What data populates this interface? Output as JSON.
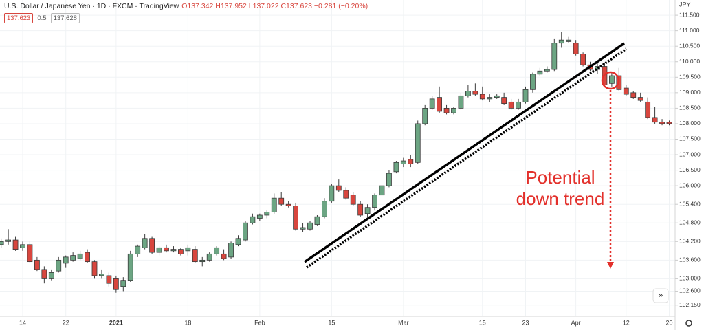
{
  "header": {
    "title": "U.S. Dollar / Japanese Yen · 1D · FXCM · TradingView",
    "ohlc": "O137.342 H137.952 L137.022 C137.623 −0.281 (−0.20%)",
    "price_box": "137.623",
    "step": "0.5",
    "price_box2": "137.628",
    "currency": "JPY"
  },
  "chart_data": {
    "type": "candlestick",
    "annotation": [
      "Potential",
      "down trend"
    ],
    "up_color": "#6ca583",
    "down_color": "#d8463e",
    "grid": true,
    "ylim": [
      101.79,
      111.99
    ],
    "yticks": [
      {
        "value": 111.5,
        "label": "111.500"
      },
      {
        "value": 111,
        "label": "111.000"
      },
      {
        "value": 110.5,
        "label": "110.500"
      },
      {
        "value": 110,
        "label": "110.000"
      },
      {
        "value": 109.5,
        "label": "109.500"
      },
      {
        "value": 109,
        "label": "109.000"
      },
      {
        "value": 108.5,
        "label": "108.500"
      },
      {
        "value": 108,
        "label": "108.000"
      },
      {
        "value": 107.5,
        "label": "107.500"
      },
      {
        "value": 107,
        "label": "107.000"
      },
      {
        "value": 106.5,
        "label": "106.500"
      },
      {
        "value": 106,
        "label": "106.000"
      },
      {
        "value": 105.4,
        "label": "105.400"
      },
      {
        "value": 104.8,
        "label": "104.800"
      },
      {
        "value": 104.2,
        "label": "104.200"
      },
      {
        "value": 103.6,
        "label": "103.600"
      },
      {
        "value": 103,
        "label": "103.000"
      },
      {
        "value": 102.6,
        "label": "102.600"
      },
      {
        "value": 102.15,
        "label": "102.150"
      }
    ],
    "categories": [
      null,
      null,
      null,
      "14",
      null,
      null,
      null,
      null,
      null,
      "22",
      null,
      null,
      null,
      null,
      null,
      null,
      "2021",
      null,
      null,
      null,
      null,
      null,
      null,
      null,
      null,
      null,
      "18",
      null,
      null,
      null,
      null,
      null,
      null,
      null,
      null,
      null,
      "Feb",
      null,
      null,
      null,
      null,
      null,
      null,
      null,
      null,
      null,
      "15",
      null,
      null,
      null,
      null,
      null,
      null,
      null,
      null,
      null,
      "Mar",
      null,
      null,
      null,
      null,
      null,
      null,
      null,
      null,
      null,
      null,
      "15",
      null,
      null,
      null,
      null,
      null,
      "23",
      null,
      null,
      null,
      null,
      null,
      null,
      "Apr",
      null,
      null,
      null,
      null,
      null,
      null,
      "12",
      null,
      null,
      null,
      null,
      null,
      "20"
    ],
    "open": [
      104.1,
      104.2,
      104.25,
      104.0,
      104.1,
      103.6,
      103.3,
      103.0,
      103.25,
      103.5,
      103.6,
      103.65,
      103.85,
      103.55,
      103.1,
      103.1,
      103.0,
      102.75,
      102.95,
      103.8,
      104.0,
      104.3,
      103.85,
      104.0,
      103.9,
      103.95,
      103.9,
      103.95,
      103.55,
      103.6,
      103.8,
      103.8,
      103.7,
      104.1,
      104.25,
      104.8,
      104.95,
      105.05,
      105.15,
      105.6,
      105.4,
      105.35,
      104.6,
      104.6,
      104.75,
      105.0,
      105.5,
      106.0,
      105.85,
      105.7,
      105.4,
      105.1,
      105.3,
      105.7,
      106.0,
      106.45,
      106.7,
      106.85,
      106.75,
      108.0,
      108.5,
      108.85,
      108.5,
      108.35,
      108.5,
      108.9,
      109.05,
      108.95,
      108.8,
      108.85,
      108.85,
      108.7,
      108.5,
      108.7,
      109.1,
      109.6,
      109.7,
      109.75,
      110.6,
      110.65,
      110.6,
      110.25,
      109.9,
      109.75,
      109.85,
      109.3,
      109.55,
      109.15,
      109.0,
      108.85,
      108.7,
      108.2,
      108.05,
      108.05
    ],
    "high": [
      104.3,
      104.6,
      104.35,
      104.2,
      104.2,
      103.7,
      103.4,
      103.3,
      103.7,
      103.75,
      103.85,
      103.9,
      103.95,
      103.6,
      103.3,
      103.2,
      103.1,
      103.05,
      103.9,
      104.1,
      104.45,
      104.35,
      104.05,
      104.1,
      104.05,
      104.0,
      104.1,
      104.05,
      103.7,
      103.85,
      104.05,
      103.95,
      104.2,
      104.4,
      104.85,
      105.1,
      105.1,
      105.2,
      105.75,
      105.8,
      105.5,
      105.45,
      104.8,
      104.85,
      105.05,
      105.6,
      106.05,
      106.2,
      105.95,
      105.8,
      105.5,
      105.4,
      105.75,
      106.1,
      106.5,
      106.8,
      106.9,
      107.0,
      108.1,
      108.6,
      108.9,
      109.2,
      108.6,
      108.55,
      109.0,
      109.25,
      109.3,
      109.2,
      108.95,
      108.95,
      109.0,
      108.8,
      108.8,
      109.2,
      109.65,
      109.8,
      109.85,
      110.75,
      110.95,
      110.8,
      110.7,
      110.3,
      110.0,
      109.95,
      109.95,
      109.65,
      109.8,
      109.25,
      109.05,
      109.0,
      108.85,
      108.55,
      108.15,
      108.1
    ],
    "low": [
      104.0,
      104.1,
      103.9,
      103.9,
      103.5,
      103.25,
      102.85,
      102.95,
      103.2,
      103.35,
      103.55,
      103.6,
      103.5,
      103.0,
      103.0,
      102.75,
      102.55,
      102.6,
      102.9,
      103.7,
      103.95,
      103.8,
      103.75,
      103.85,
      103.85,
      103.75,
      103.75,
      103.5,
      103.4,
      103.55,
      103.75,
      103.6,
      103.65,
      104.05,
      104.2,
      104.75,
      104.85,
      104.95,
      105.1,
      105.35,
      105.3,
      104.55,
      104.5,
      104.55,
      104.7,
      104.95,
      105.45,
      105.8,
      105.55,
      105.35,
      105.0,
      105.0,
      105.2,
      105.6,
      105.95,
      106.4,
      106.6,
      106.6,
      106.7,
      107.95,
      108.45,
      108.35,
      108.3,
      108.3,
      108.45,
      108.85,
      108.9,
      108.75,
      108.7,
      108.8,
      108.6,
      108.45,
      108.45,
      108.65,
      109.0,
      109.55,
      109.65,
      109.7,
      110.45,
      110.6,
      110.2,
      109.85,
      109.7,
      109.6,
      109.2,
      109.2,
      109.05,
      108.9,
      108.8,
      108.7,
      108.15,
      108.0,
      107.95,
      107.95
    ],
    "close": [
      104.2,
      104.25,
      103.95,
      104.1,
      103.55,
      103.3,
      103.0,
      103.2,
      103.6,
      103.7,
      103.75,
      103.8,
      103.55,
      103.1,
      103.15,
      102.85,
      102.65,
      102.95,
      103.8,
      104.05,
      104.3,
      103.85,
      104.0,
      103.9,
      103.95,
      103.8,
      104.0,
      103.55,
      103.6,
      103.8,
      104.0,
      103.65,
      104.15,
      104.3,
      104.8,
      105.0,
      105.05,
      105.15,
      105.6,
      105.4,
      105.35,
      104.6,
      104.65,
      104.8,
      105.0,
      105.5,
      106.0,
      105.85,
      105.6,
      105.4,
      105.05,
      105.3,
      105.7,
      106.0,
      106.4,
      106.75,
      106.8,
      106.7,
      108.0,
      108.5,
      108.8,
      108.4,
      108.35,
      108.5,
      108.9,
      109.05,
      108.95,
      108.8,
      108.85,
      108.9,
      108.65,
      108.5,
      108.7,
      109.1,
      109.6,
      109.7,
      109.75,
      110.6,
      110.7,
      110.7,
      110.25,
      109.9,
      109.75,
      109.85,
      109.25,
      109.55,
      109.1,
      108.95,
      108.85,
      108.75,
      108.2,
      108.05,
      108.0,
      108.0
    ]
  }
}
